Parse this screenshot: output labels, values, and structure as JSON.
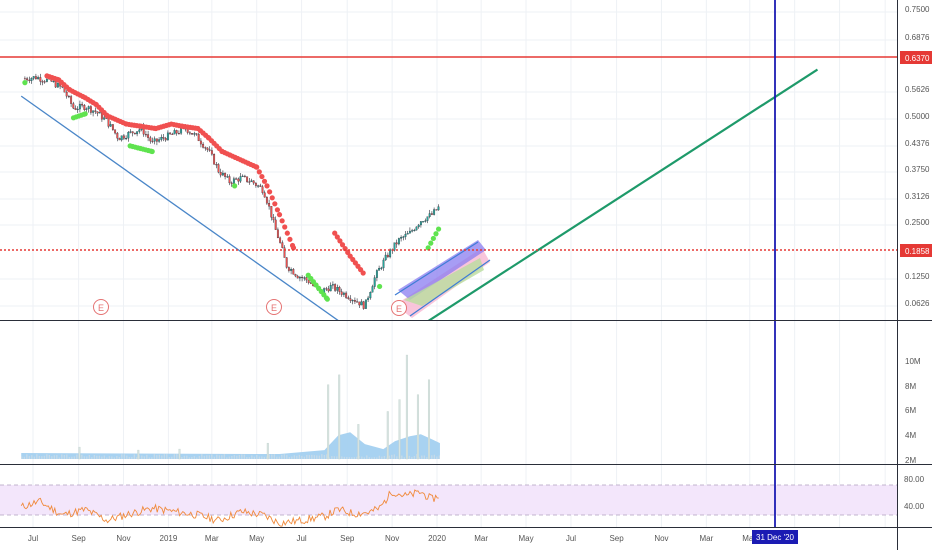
{
  "chart_data": [
    {
      "type": "candlestick",
      "panel": "price",
      "y_axis_ticks": [
        "0.7500",
        "0.6876",
        "0.5626",
        "0.5000",
        "0.4376",
        "0.3750",
        "0.3126",
        "0.2500",
        "0.1250",
        "0.0626"
      ],
      "ylim": [
        0.04,
        0.78
      ],
      "x_axis_ticks": [
        "Jul",
        "Sep",
        "Nov",
        "2019",
        "Mar",
        "May",
        "Jul",
        "Sep",
        "Nov",
        "2020",
        "Mar",
        "May",
        "Jul",
        "Sep",
        "Nov",
        "Mar",
        "May"
      ],
      "highlighted_date": "31 Dec '20",
      "price_labels": {
        "target": "0.6370",
        "last": "0.1858"
      },
      "horizontal_levels": [
        {
          "value": 0.637,
          "color": "#e53935",
          "style": "solid"
        },
        {
          "value": 0.1858,
          "color": "#e53935",
          "style": "dotted"
        }
      ],
      "earnings_markers": [
        "E",
        "E",
        "E"
      ],
      "price_series": [
        {
          "date": "2018-06-20",
          "close": 0.71
        },
        {
          "date": "2018-07-05",
          "close": 0.72
        },
        {
          "date": "2018-07-25",
          "close": 0.69
        },
        {
          "date": "2018-08-10",
          "close": 0.64
        },
        {
          "date": "2018-08-25",
          "close": 0.52
        },
        {
          "date": "2018-09-10",
          "close": 0.53
        },
        {
          "date": "2018-09-25",
          "close": 0.5
        },
        {
          "date": "2018-10-10",
          "close": 0.45
        },
        {
          "date": "2018-10-25",
          "close": 0.38
        },
        {
          "date": "2018-11-10",
          "close": 0.4
        },
        {
          "date": "2018-11-25",
          "close": 0.42
        },
        {
          "date": "2018-12-10",
          "close": 0.36
        },
        {
          "date": "2018-12-25",
          "close": 0.38
        },
        {
          "date": "2019-01-10",
          "close": 0.4
        },
        {
          "date": "2019-01-25",
          "close": 0.42
        },
        {
          "date": "2019-02-10",
          "close": 0.38
        },
        {
          "date": "2019-02-25",
          "close": 0.33
        },
        {
          "date": "2019-03-10",
          "close": 0.27
        },
        {
          "date": "2019-03-25",
          "close": 0.24
        },
        {
          "date": "2019-04-10",
          "close": 0.25
        },
        {
          "date": "2019-04-25",
          "close": 0.24
        },
        {
          "date": "2019-05-10",
          "close": 0.22
        },
        {
          "date": "2019-05-25",
          "close": 0.15
        },
        {
          "date": "2019-06-10",
          "close": 0.1
        },
        {
          "date": "2019-06-25",
          "close": 0.09
        },
        {
          "date": "2019-07-10",
          "close": 0.085
        },
        {
          "date": "2019-07-25",
          "close": 0.075
        },
        {
          "date": "2019-08-10",
          "close": 0.08
        },
        {
          "date": "2019-08-25",
          "close": 0.075
        },
        {
          "date": "2019-09-10",
          "close": 0.07
        },
        {
          "date": "2019-09-25",
          "close": 0.065
        },
        {
          "date": "2019-10-10",
          "close": 0.09
        },
        {
          "date": "2019-10-25",
          "close": 0.11
        },
        {
          "date": "2019-11-10",
          "close": 0.13
        },
        {
          "date": "2019-11-25",
          "close": 0.14
        },
        {
          "date": "2019-12-10",
          "close": 0.16
        },
        {
          "date": "2019-12-25",
          "close": 0.17
        },
        {
          "date": "2020-01-05",
          "close": 0.1858
        }
      ],
      "resistance_stops": [
        {
          "date": "2018-07-20",
          "value": 0.73
        },
        {
          "date": "2018-08-05",
          "value": 0.7
        },
        {
          "date": "2018-08-20",
          "value": 0.63
        },
        {
          "date": "2018-09-10",
          "value": 0.58
        },
        {
          "date": "2018-09-25",
          "value": 0.54
        },
        {
          "date": "2018-10-10",
          "value": 0.48
        },
        {
          "date": "2018-11-05",
          "value": 0.44
        },
        {
          "date": "2018-11-25",
          "value": 0.43
        },
        {
          "date": "2018-12-15",
          "value": 0.42
        },
        {
          "date": "2019-01-05",
          "value": 0.44
        },
        {
          "date": "2019-01-20",
          "value": 0.43
        },
        {
          "date": "2019-02-10",
          "value": 0.42
        },
        {
          "date": "2019-02-25",
          "value": 0.38
        },
        {
          "date": "2019-03-15",
          "value": 0.33
        },
        {
          "date": "2019-05-01",
          "value": 0.28
        },
        {
          "date": "2019-05-15",
          "value": 0.23
        },
        {
          "date": "2019-06-01",
          "value": 0.17
        },
        {
          "date": "2019-06-20",
          "value": 0.12
        },
        {
          "date": "2019-08-15",
          "value": 0.14
        },
        {
          "date": "2019-09-05",
          "value": 0.11
        },
        {
          "date": "2019-09-25",
          "value": 0.09
        }
      ],
      "support_stops": [
        {
          "date": "2018-06-20",
          "value": 0.68
        },
        {
          "date": "2018-08-25",
          "value": 0.47
        },
        {
          "date": "2018-09-10",
          "value": 0.49
        },
        {
          "date": "2018-11-10",
          "value": 0.35
        },
        {
          "date": "2018-12-10",
          "value": 0.33
        },
        {
          "date": "2019-04-01",
          "value": 0.23
        },
        {
          "date": "2019-07-10",
          "value": 0.09
        },
        {
          "date": "2019-08-05",
          "value": 0.07
        },
        {
          "date": "2019-10-15",
          "value": 0.08
        },
        {
          "date": "2019-12-20",
          "value": 0.12
        },
        {
          "date": "2020-01-05",
          "value": 0.15
        }
      ],
      "lines": [
        {
          "name": "downtrend",
          "color": "#4a86c8",
          "from": {
            "date": "2018-06-15",
            "value": 0.59
          },
          "to": {
            "date": "2019-10-20",
            "value": 0.04
          }
        },
        {
          "name": "projection",
          "color": "#1e9a6a",
          "from": {
            "date": "2019-10-15",
            "value": 0.04
          },
          "to": {
            "date": "2021-06-01",
            "value": 0.78
          }
        },
        {
          "name": "vertical-date",
          "color": "#1b1bb3",
          "date": "2020-12-31"
        }
      ]
    },
    {
      "type": "bar",
      "panel": "volume",
      "y_axis_ticks": [
        "10M",
        "8M",
        "6M",
        "4M",
        "2M",
        "0"
      ],
      "ylim": [
        0,
        10500000
      ],
      "spikes": [
        {
          "date": "2018-09-01",
          "value": 1200000
        },
        {
          "date": "2018-11-20",
          "value": 900000
        },
        {
          "date": "2019-01-15",
          "value": 1000000
        },
        {
          "date": "2019-05-15",
          "value": 1600000
        },
        {
          "date": "2019-08-05",
          "value": 7500000
        },
        {
          "date": "2019-08-20",
          "value": 8500000
        },
        {
          "date": "2019-09-15",
          "value": 3500000
        },
        {
          "date": "2019-10-25",
          "value": 4800000
        },
        {
          "date": "2019-11-10",
          "value": 6000000
        },
        {
          "date": "2019-11-20",
          "value": 10500000
        },
        {
          "date": "2019-12-05",
          "value": 6500000
        },
        {
          "date": "2019-12-20",
          "value": 8000000
        }
      ],
      "moving_average": [
        {
          "date": "2018-06-15",
          "value": 600000
        },
        {
          "date": "2019-06-01",
          "value": 500000
        },
        {
          "date": "2019-08-01",
          "value": 900000
        },
        {
          "date": "2019-08-20",
          "value": 2400000
        },
        {
          "date": "2019-09-05",
          "value": 2700000
        },
        {
          "date": "2019-09-25",
          "value": 1500000
        },
        {
          "date": "2019-10-20",
          "value": 1000000
        },
        {
          "date": "2019-11-05",
          "value": 1800000
        },
        {
          "date": "2019-11-25",
          "value": 2300000
        },
        {
          "date": "2019-12-10",
          "value": 2500000
        },
        {
          "date": "2019-12-25",
          "value": 2000000
        },
        {
          "date": "2020-01-05",
          "value": 1600000
        }
      ]
    },
    {
      "type": "line",
      "panel": "rsi",
      "y_axis_ticks": [
        "80.00",
        "40.00"
      ],
      "ylim": [
        20,
        90
      ],
      "bands": [
        30,
        70
      ],
      "series": [
        {
          "date": "2018-06-15",
          "value": 52
        },
        {
          "date": "2018-07-10",
          "value": 60
        },
        {
          "date": "2018-08-10",
          "value": 40
        },
        {
          "date": "2018-09-10",
          "value": 48
        },
        {
          "date": "2018-10-10",
          "value": 32
        },
        {
          "date": "2018-11-10",
          "value": 42
        },
        {
          "date": "2018-12-10",
          "value": 50
        },
        {
          "date": "2019-01-10",
          "value": 45
        },
        {
          "date": "2019-02-10",
          "value": 40
        },
        {
          "date": "2019-03-10",
          "value": 32
        },
        {
          "date": "2019-04-10",
          "value": 45
        },
        {
          "date": "2019-05-10",
          "value": 40
        },
        {
          "date": "2019-06-01",
          "value": 28
        },
        {
          "date": "2019-07-01",
          "value": 32
        },
        {
          "date": "2019-08-01",
          "value": 38
        },
        {
          "date": "2019-08-20",
          "value": 48
        },
        {
          "date": "2019-09-10",
          "value": 42
        },
        {
          "date": "2019-10-01",
          "value": 44
        },
        {
          "date": "2019-10-15",
          "value": 50
        },
        {
          "date": "2019-11-01",
          "value": 75
        },
        {
          "date": "2019-11-20",
          "value": 68
        },
        {
          "date": "2019-12-10",
          "value": 74
        },
        {
          "date": "2019-12-25",
          "value": 63
        },
        {
          "date": "2020-01-05",
          "value": 70
        }
      ]
    }
  ],
  "colors": {
    "background": "#ffffff",
    "grid": "#eef1f5",
    "up_candle": "#26a69a",
    "down_candle": "#ef5350",
    "resistance": "#f05050",
    "support": "#5fe34f",
    "volume_spike": "#d7e3e0",
    "volume_ma": "#9fcdf0",
    "rsi_line": "#f08a3c",
    "rsi_band": "#f0e2f8",
    "axis_text": "#555555",
    "label_bg_red": "#e53935",
    "label_bg_blue": "#1b1bb3"
  }
}
